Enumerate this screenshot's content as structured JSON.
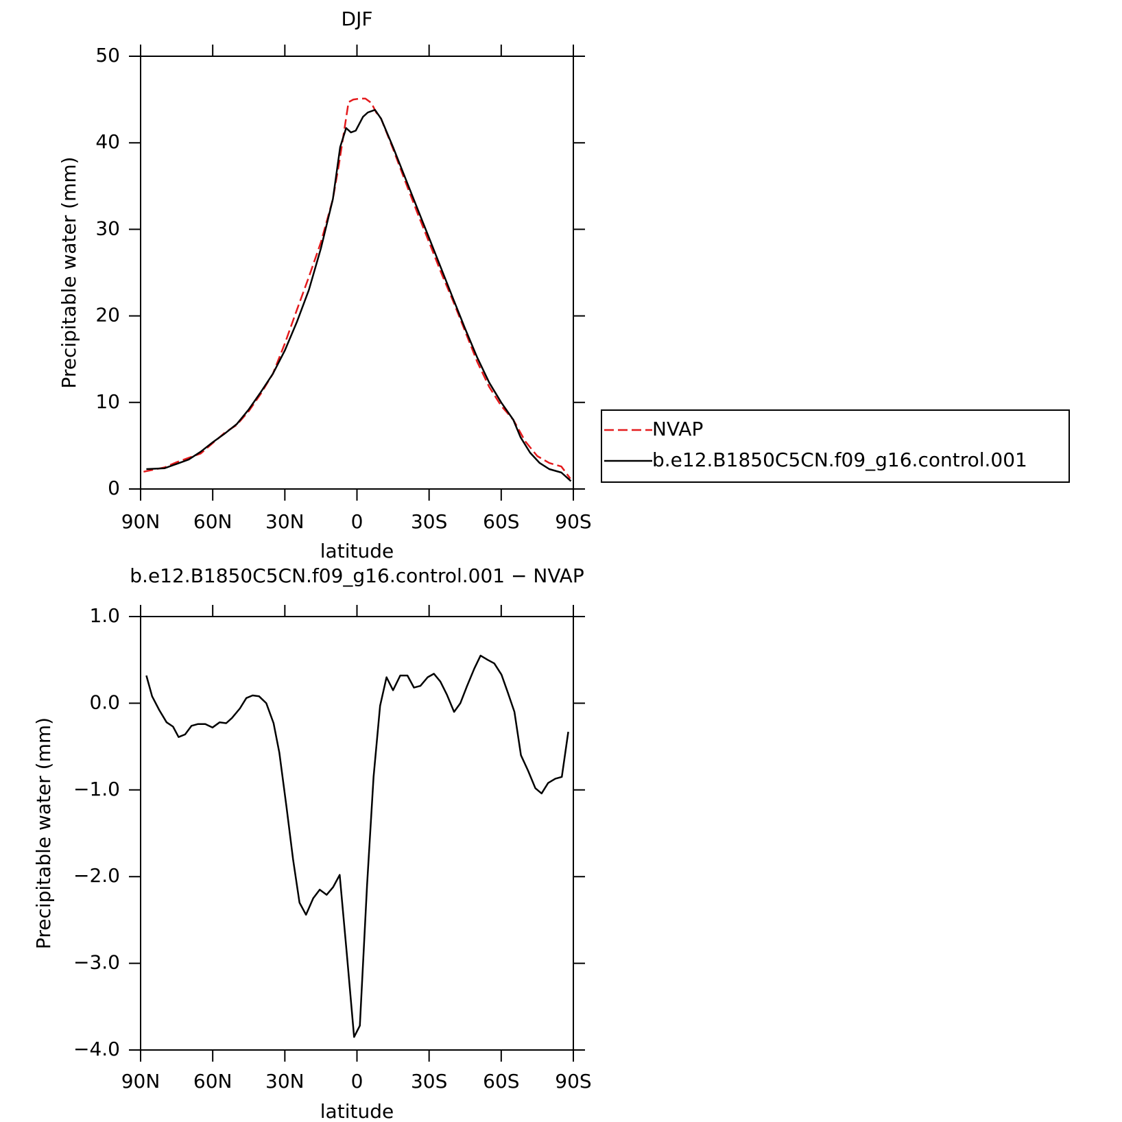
{
  "chart_data": [
    {
      "type": "line",
      "title": "DJF",
      "x_label": "latitude",
      "y_label": "Precipitable water (mm)",
      "xlim": [
        90,
        -90
      ],
      "xticks": [
        {
          "value": 90,
          "label": "90N"
        },
        {
          "value": 60,
          "label": "60N"
        },
        {
          "value": 30,
          "label": "30N"
        },
        0,
        {
          "value": -30,
          "label": "30S"
        },
        {
          "value": -60,
          "label": "60S"
        },
        {
          "value": -90,
          "label": "90S"
        }
      ],
      "ylim": [
        0,
        50
      ],
      "yticks": [
        0,
        10,
        20,
        30,
        40,
        50
      ],
      "legend": "right",
      "series": [
        {
          "name": "NVAP",
          "color": "#e41a1c",
          "dash": true,
          "x": [
            88.75,
            85,
            80,
            75,
            70,
            65,
            60,
            55,
            50,
            45,
            40,
            35,
            30,
            25,
            20,
            15,
            10,
            7.5,
            5,
            3.5,
            1.5,
            -1,
            -3.5,
            -6,
            -8,
            -10,
            -15,
            -20,
            -25,
            -30,
            -35,
            -40,
            -45,
            -50,
            -55,
            -60,
            -65,
            -70,
            -75,
            -80,
            -85,
            -88.75
          ],
          "values": [
            2.0,
            2.2,
            2.5,
            3.1,
            3.6,
            4.1,
            5.3,
            6.5,
            7.4,
            9.0,
            11.0,
            13.3,
            16.8,
            20.7,
            24.5,
            28.5,
            33.5,
            37.5,
            42.0,
            44.7,
            45.0,
            45.1,
            45.1,
            44.6,
            43.5,
            42.8,
            39.3,
            35.6,
            32.0,
            28.5,
            25.0,
            21.7,
            18.2,
            14.7,
            11.8,
            9.6,
            8.0,
            5.5,
            3.8,
            3.0,
            2.6,
            1.2
          ]
        },
        {
          "name": "b.e12.B1850C5CN.f09_g16.control.001",
          "color": "#000000",
          "dash": false,
          "x": [
            87.6,
            80,
            75,
            70,
            65,
            60,
            55,
            50,
            45,
            40,
            35,
            30,
            25,
            20,
            15,
            10,
            7,
            4.5,
            2.5,
            0.5,
            -2.5,
            -4.5,
            -7.5,
            -10,
            -15,
            -20,
            -25,
            -30,
            -35,
            -40,
            -45,
            -50,
            -55,
            -60,
            -65,
            -68,
            -72,
            -76,
            -80,
            -85,
            -89
          ],
          "values": [
            2.3,
            2.4,
            2.9,
            3.4,
            4.3,
            5.4,
            6.4,
            7.5,
            9.2,
            11.2,
            13.3,
            16.0,
            19.3,
            23.0,
            27.8,
            33.5,
            39.5,
            41.7,
            41.2,
            41.4,
            43.0,
            43.5,
            43.8,
            42.8,
            39.5,
            36.0,
            32.5,
            29.0,
            25.5,
            22.0,
            18.5,
            15.2,
            12.3,
            10.0,
            8.0,
            6.0,
            4.2,
            3.0,
            2.3,
            1.9,
            0.9
          ]
        }
      ]
    },
    {
      "type": "line",
      "title": "b.e12.B1850C5CN.f09_g16.control.001 − NVAP",
      "x_label": "latitude",
      "y_label": "Precipitable water (mm)",
      "xlim": [
        90,
        -90
      ],
      "xticks": [
        {
          "value": 90,
          "label": "90N"
        },
        {
          "value": 60,
          "label": "60N"
        },
        {
          "value": 30,
          "label": "30N"
        },
        0,
        {
          "value": -30,
          "label": "30S"
        },
        {
          "value": -60,
          "label": "60S"
        },
        {
          "value": -90,
          "label": "90S"
        }
      ],
      "ylim": [
        -4,
        1
      ],
      "yticks": [
        {
          "value": -4,
          "label": "−4.0"
        },
        {
          "value": -3,
          "label": "−3.0"
        },
        {
          "value": -2,
          "label": "−2.0"
        },
        {
          "value": -1,
          "label": "−1.0"
        },
        {
          "value": 0,
          "label": "0.0"
        },
        {
          "value": 1,
          "label": "1.0"
        }
      ],
      "series": [
        {
          "color": "#000000",
          "dash": false,
          "x": [
            87.6,
            85.2,
            82.2,
            79.2,
            76.5,
            74.2,
            71.5,
            68.8,
            66.1,
            63.1,
            60.1,
            57.1,
            54.4,
            52,
            48.7,
            46,
            43.4,
            40.7,
            37.7,
            34.7,
            32.3,
            29.3,
            26.6,
            23.9,
            21.2,
            18.2,
            15.5,
            12.6,
            9.9,
            7.2,
            4.2,
            1.2,
            -1.2,
            -4.2,
            -6.9,
            -9.6,
            -12.3,
            -15,
            -18,
            -21,
            -23.7,
            -26.4,
            -29.4,
            -32,
            -34.7,
            -37.4,
            -40.4,
            -43,
            -45.8,
            -48.8,
            -51.4,
            -54.4,
            -57.1,
            -60.1,
            -62.8,
            -65.5,
            -68.2,
            -71.2,
            -74.2,
            -76.8,
            -79.5,
            -82.5,
            -85.2,
            -87.9
          ],
          "values": [
            0.32,
            0.08,
            -0.08,
            -0.22,
            -0.27,
            -0.39,
            -0.36,
            -0.26,
            -0.24,
            -0.24,
            -0.28,
            -0.22,
            -0.23,
            -0.17,
            -0.06,
            0.06,
            0.09,
            0.08,
            0.0,
            -0.23,
            -0.57,
            -1.2,
            -1.8,
            -2.3,
            -2.44,
            -2.25,
            -2.15,
            -2.21,
            -2.12,
            -1.98,
            -2.9,
            -3.85,
            -3.72,
            -2.1,
            -0.85,
            -0.03,
            0.3,
            0.15,
            0.32,
            0.32,
            0.18,
            0.2,
            0.3,
            0.34,
            0.25,
            0.1,
            -0.1,
            0.0,
            0.2,
            0.4,
            0.55,
            0.5,
            0.46,
            0.33,
            0.12,
            -0.1,
            -0.6,
            -0.78,
            -0.98,
            -1.04,
            -0.92,
            -0.87,
            -0.85,
            -0.33
          ]
        }
      ]
    }
  ]
}
